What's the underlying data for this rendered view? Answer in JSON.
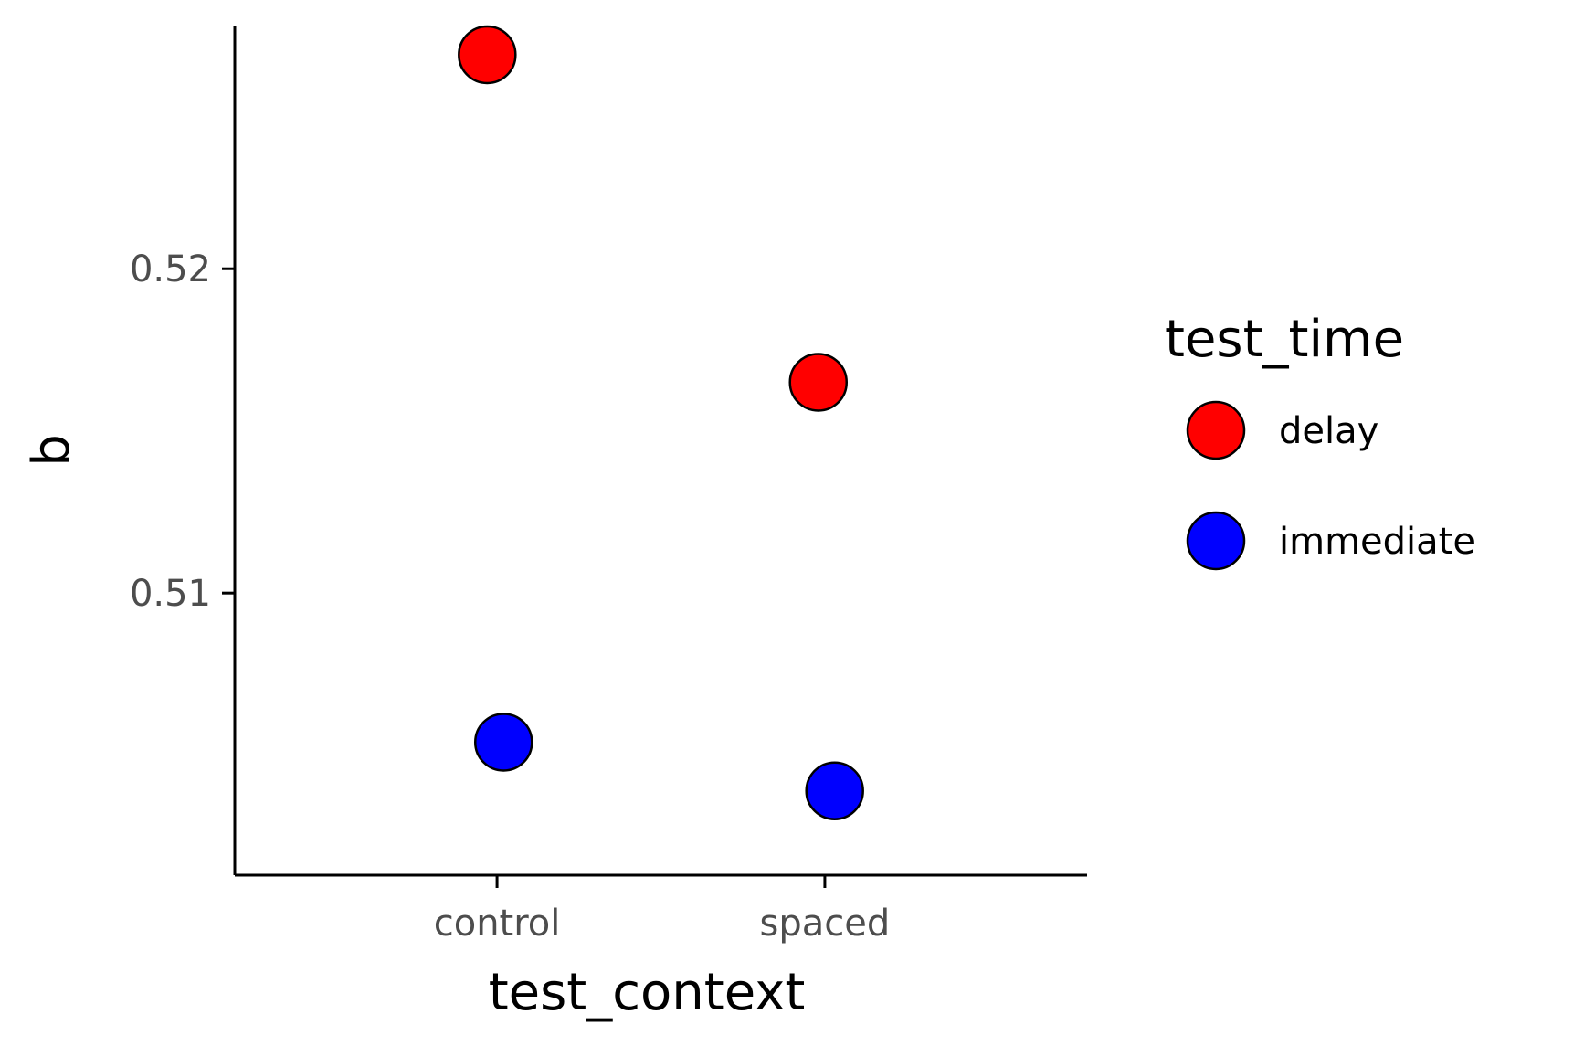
{
  "chart_data": {
    "type": "scatter",
    "title": "",
    "xlabel": "test_context",
    "ylabel": "b",
    "categories": [
      "control",
      "spaced"
    ],
    "ylim": [
      0.5013,
      0.5275
    ],
    "yticks": [
      0.51,
      0.52
    ],
    "ytick_labels": [
      "0.51",
      "0.52"
    ],
    "grid": false,
    "legend": {
      "title": "test_time",
      "placement": "right"
    },
    "series": [
      {
        "name": "delay",
        "color": "#ff0000",
        "x": [
          "control",
          "spaced"
        ],
        "jitter": [
          -0.03,
          -0.02
        ],
        "values": [
          0.5266,
          0.5165
        ]
      },
      {
        "name": "immediate",
        "color": "#0000ff",
        "x": [
          "control",
          "spaced"
        ],
        "jitter": [
          0.02,
          0.03
        ],
        "values": [
          0.5054,
          0.5039
        ]
      }
    ]
  }
}
